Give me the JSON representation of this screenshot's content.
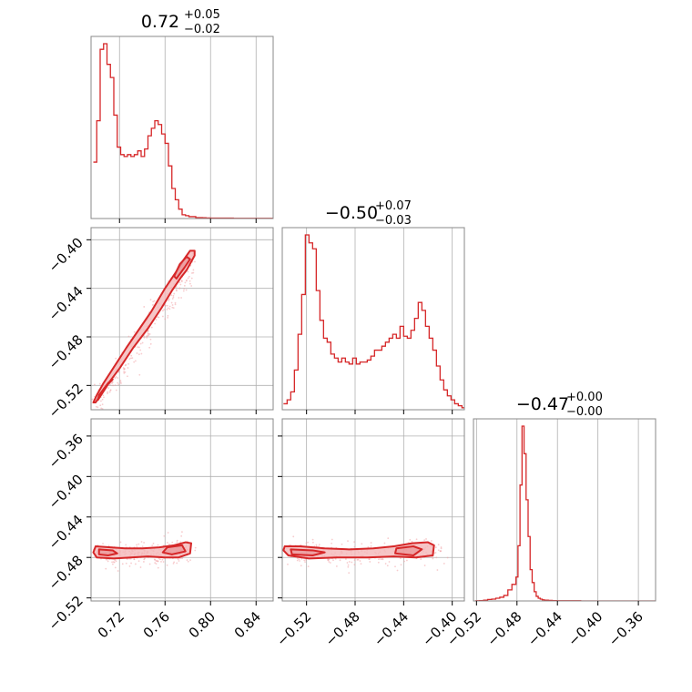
{
  "chart_data": {
    "type": "corner",
    "color": "#d62728",
    "fill_color": "#f4b6b8",
    "scatter_color": "#f0a3a5",
    "grid": true,
    "parameters": [
      {
        "range": [
          0.695,
          0.855
        ],
        "ticks": [
          0.72,
          0.76,
          0.8,
          0.84
        ],
        "tick_labels": [
          "0.72",
          "0.76",
          "0.80",
          "0.84"
        ]
      },
      {
        "range": [
          -0.54,
          -0.39
        ],
        "ticks": [
          -0.52,
          -0.48,
          -0.44,
          -0.4
        ],
        "tick_labels": [
          "−0.52",
          "−0.48",
          "−0.44",
          "−0.40"
        ]
      },
      {
        "range": [
          -0.523,
          -0.343
        ],
        "ticks": [
          -0.52,
          -0.48,
          -0.44,
          -0.4,
          -0.36
        ],
        "tick_labels": [
          "−0.52",
          "−0.48",
          "−0.44",
          "−0.40",
          "−0.36"
        ]
      }
    ],
    "titles": [
      {
        "main": "0.72",
        "plus": "+0.05",
        "minus": "−0.02"
      },
      {
        "main": "−0.50",
        "plus": "+0.07",
        "minus": "−0.03"
      },
      {
        "main": "−0.47",
        "plus": "+0.00",
        "minus": "−0.00"
      }
    ],
    "histograms": [
      {
        "x": [
          0.697,
          0.7,
          0.703,
          0.706,
          0.709,
          0.712,
          0.715,
          0.718,
          0.721,
          0.724,
          0.727,
          0.73,
          0.733,
          0.736,
          0.739,
          0.742,
          0.745,
          0.748,
          0.751,
          0.754,
          0.757,
          0.76,
          0.763,
          0.766,
          0.769,
          0.772,
          0.775,
          0.778,
          0.781,
          0.784,
          0.787,
          0.79,
          0.793,
          0.796,
          0.8,
          0.81,
          0.82,
          0.83,
          0.84,
          0.855
        ],
        "counts": [
          0.3,
          0.52,
          0.9,
          0.93,
          0.82,
          0.75,
          0.55,
          0.38,
          0.34,
          0.33,
          0.34,
          0.33,
          0.34,
          0.36,
          0.33,
          0.37,
          0.44,
          0.48,
          0.52,
          0.5,
          0.45,
          0.4,
          0.28,
          0.16,
          0.1,
          0.05,
          0.02,
          0.015,
          0.01,
          0.01,
          0.005,
          0.005,
          0.004,
          0.003,
          0.002,
          0.002,
          0.001,
          0.001,
          0.001,
          0.001
        ]
      },
      {
        "x": [
          -0.539,
          -0.536,
          -0.533,
          -0.53,
          -0.527,
          -0.524,
          -0.521,
          -0.518,
          -0.515,
          -0.512,
          -0.509,
          -0.506,
          -0.503,
          -0.5,
          -0.497,
          -0.494,
          -0.491,
          -0.488,
          -0.485,
          -0.482,
          -0.479,
          -0.476,
          -0.473,
          -0.47,
          -0.467,
          -0.464,
          -0.461,
          -0.458,
          -0.455,
          -0.452,
          -0.449,
          -0.446,
          -0.443,
          -0.44,
          -0.437,
          -0.434,
          -0.431,
          -0.428,
          -0.425,
          -0.422,
          -0.419,
          -0.416,
          -0.413,
          -0.41,
          -0.407,
          -0.404,
          -0.401,
          -0.398,
          -0.395,
          -0.392
        ],
        "counts": [
          0.03,
          0.05,
          0.09,
          0.2,
          0.38,
          0.58,
          0.88,
          0.84,
          0.81,
          0.6,
          0.45,
          0.36,
          0.34,
          0.28,
          0.26,
          0.24,
          0.26,
          0.24,
          0.23,
          0.26,
          0.23,
          0.24,
          0.24,
          0.25,
          0.27,
          0.3,
          0.3,
          0.32,
          0.34,
          0.36,
          0.38,
          0.36,
          0.42,
          0.37,
          0.36,
          0.4,
          0.46,
          0.54,
          0.5,
          0.42,
          0.36,
          0.3,
          0.22,
          0.15,
          0.1,
          0.07,
          0.05,
          0.03,
          0.02,
          0.01
        ]
      },
      {
        "x": [
          -0.521,
          -0.517,
          -0.513,
          -0.509,
          -0.505,
          -0.501,
          -0.497,
          -0.493,
          -0.489,
          -0.485,
          -0.481,
          -0.479,
          -0.477,
          -0.475,
          -0.473,
          -0.471,
          -0.469,
          -0.467,
          -0.465,
          -0.463,
          -0.461,
          -0.459,
          -0.457,
          -0.455,
          -0.453,
          -0.449,
          -0.445,
          -0.441,
          -0.437,
          -0.433,
          -0.429,
          -0.425,
          -0.421,
          -0.417,
          -0.413,
          -0.409,
          -0.405,
          -0.401,
          -0.397,
          -0.393,
          -0.389,
          -0.385,
          -0.381,
          -0.377,
          -0.373,
          -0.369,
          -0.365,
          -0.361,
          -0.357,
          -0.353,
          -0.349,
          -0.345
        ],
        "counts": [
          0.001,
          0.002,
          0.004,
          0.008,
          0.01,
          0.015,
          0.02,
          0.03,
          0.06,
          0.09,
          0.13,
          0.3,
          0.63,
          0.95,
          0.8,
          0.55,
          0.35,
          0.17,
          0.1,
          0.05,
          0.025,
          0.015,
          0.01,
          0.006,
          0.004,
          0.003,
          0.002,
          0.001,
          0.001,
          0.001,
          0.001,
          0.001,
          0.001,
          0.0,
          0.0,
          0.0,
          0.0,
          0.0,
          0.0,
          0.0,
          0.0,
          0.0,
          0.0,
          0.0,
          0.0,
          0.0,
          0.0,
          0.0,
          0.0,
          0.0,
          0.0,
          0.0
        ]
      }
    ],
    "scatter_panels": [
      {
        "row": 1,
        "col": 0,
        "trend": [
          [
            0.698,
            -0.536
          ],
          [
            0.705,
            -0.528
          ],
          [
            0.715,
            -0.515
          ],
          [
            0.725,
            -0.502
          ],
          [
            0.735,
            -0.489
          ],
          [
            0.745,
            -0.476
          ],
          [
            0.755,
            -0.462
          ],
          [
            0.765,
            -0.447
          ],
          [
            0.772,
            -0.437
          ],
          [
            0.778,
            -0.428
          ],
          [
            0.785,
            -0.418
          ]
        ],
        "spread": [
          0.004,
          0.004
        ]
      },
      {
        "row": 2,
        "col": 0,
        "trend": [
          [
            0.698,
            -0.475
          ],
          [
            0.71,
            -0.476
          ],
          [
            0.72,
            -0.477
          ],
          [
            0.73,
            -0.477
          ],
          [
            0.74,
            -0.477
          ],
          [
            0.75,
            -0.476
          ],
          [
            0.76,
            -0.475
          ],
          [
            0.77,
            -0.474
          ],
          [
            0.78,
            -0.472
          ]
        ],
        "spread": [
          0.005,
          0.004
        ]
      },
      {
        "row": 2,
        "col": 1,
        "trend": [
          [
            -0.535,
            -0.474
          ],
          [
            -0.525,
            -0.475
          ],
          [
            -0.515,
            -0.476
          ],
          [
            -0.5,
            -0.477
          ],
          [
            -0.485,
            -0.477
          ],
          [
            -0.47,
            -0.477
          ],
          [
            -0.455,
            -0.476
          ],
          [
            -0.44,
            -0.475
          ],
          [
            -0.425,
            -0.474
          ],
          [
            -0.41,
            -0.473
          ]
        ],
        "spread": [
          0.005,
          0.004
        ]
      }
    ],
    "contours": [
      {
        "row": 1,
        "col": 0,
        "outer": [
          [
            0.699,
            -0.534
          ],
          [
            0.708,
            -0.521
          ],
          [
            0.72,
            -0.506
          ],
          [
            0.732,
            -0.489
          ],
          [
            0.745,
            -0.473
          ],
          [
            0.757,
            -0.456
          ],
          [
            0.766,
            -0.442
          ],
          [
            0.774,
            -0.431
          ],
          [
            0.779,
            -0.425
          ],
          [
            0.786,
            -0.413
          ],
          [
            0.786,
            -0.409
          ],
          [
            0.782,
            -0.409
          ],
          [
            0.776,
            -0.417
          ],
          [
            0.77,
            -0.426
          ],
          [
            0.76,
            -0.44
          ],
          [
            0.748,
            -0.459
          ],
          [
            0.737,
            -0.474
          ],
          [
            0.726,
            -0.489
          ],
          [
            0.715,
            -0.505
          ],
          [
            0.706,
            -0.518
          ],
          [
            0.7,
            -0.528
          ],
          [
            0.697,
            -0.534
          ]
        ],
        "inner": [
          [
            0.77,
            -0.432
          ],
          [
            0.777,
            -0.423
          ],
          [
            0.782,
            -0.416
          ],
          [
            0.779,
            -0.414
          ],
          [
            0.773,
            -0.42
          ],
          [
            0.768,
            -0.43
          ]
        ],
        "inner2": [
          [
            0.701,
            -0.532
          ],
          [
            0.71,
            -0.519
          ],
          [
            0.714,
            -0.515
          ],
          [
            0.71,
            -0.518
          ],
          [
            0.702,
            -0.528
          ]
        ]
      },
      {
        "row": 2,
        "col": 0,
        "outer": [
          [
            0.699,
            -0.469
          ],
          [
            0.712,
            -0.47
          ],
          [
            0.725,
            -0.471
          ],
          [
            0.74,
            -0.471
          ],
          [
            0.755,
            -0.47
          ],
          [
            0.768,
            -0.468
          ],
          [
            0.778,
            -0.465
          ],
          [
            0.783,
            -0.466
          ],
          [
            0.782,
            -0.476
          ],
          [
            0.772,
            -0.48
          ],
          [
            0.76,
            -0.48
          ],
          [
            0.745,
            -0.479
          ],
          [
            0.73,
            -0.48
          ],
          [
            0.715,
            -0.481
          ],
          [
            0.7,
            -0.48
          ],
          [
            0.697,
            -0.475
          ]
        ],
        "inner": [
          [
            0.702,
            -0.472
          ],
          [
            0.714,
            -0.473
          ],
          [
            0.718,
            -0.476
          ],
          [
            0.71,
            -0.478
          ],
          [
            0.702,
            -0.477
          ]
        ],
        "inner2": [
          [
            0.762,
            -0.47
          ],
          [
            0.775,
            -0.468
          ],
          [
            0.778,
            -0.474
          ],
          [
            0.766,
            -0.477
          ],
          [
            0.758,
            -0.475
          ]
        ]
      },
      {
        "row": 2,
        "col": 1,
        "outer": [
          [
            -0.538,
            -0.469
          ],
          [
            -0.525,
            -0.469
          ],
          [
            -0.505,
            -0.471
          ],
          [
            -0.485,
            -0.472
          ],
          [
            -0.465,
            -0.471
          ],
          [
            -0.448,
            -0.469
          ],
          [
            -0.433,
            -0.466
          ],
          [
            -0.42,
            -0.465
          ],
          [
            -0.415,
            -0.468
          ],
          [
            -0.416,
            -0.478
          ],
          [
            -0.43,
            -0.48
          ],
          [
            -0.448,
            -0.479
          ],
          [
            -0.47,
            -0.48
          ],
          [
            -0.495,
            -0.48
          ],
          [
            -0.518,
            -0.481
          ],
          [
            -0.535,
            -0.478
          ],
          [
            -0.539,
            -0.473
          ]
        ],
        "inner": [
          [
            -0.533,
            -0.472
          ],
          [
            -0.515,
            -0.473
          ],
          [
            -0.505,
            -0.475
          ],
          [
            -0.515,
            -0.478
          ],
          [
            -0.532,
            -0.477
          ]
        ],
        "inner2": [
          [
            -0.446,
            -0.471
          ],
          [
            -0.432,
            -0.469
          ],
          [
            -0.425,
            -0.472
          ],
          [
            -0.432,
            -0.478
          ],
          [
            -0.447,
            -0.476
          ]
        ]
      }
    ]
  }
}
